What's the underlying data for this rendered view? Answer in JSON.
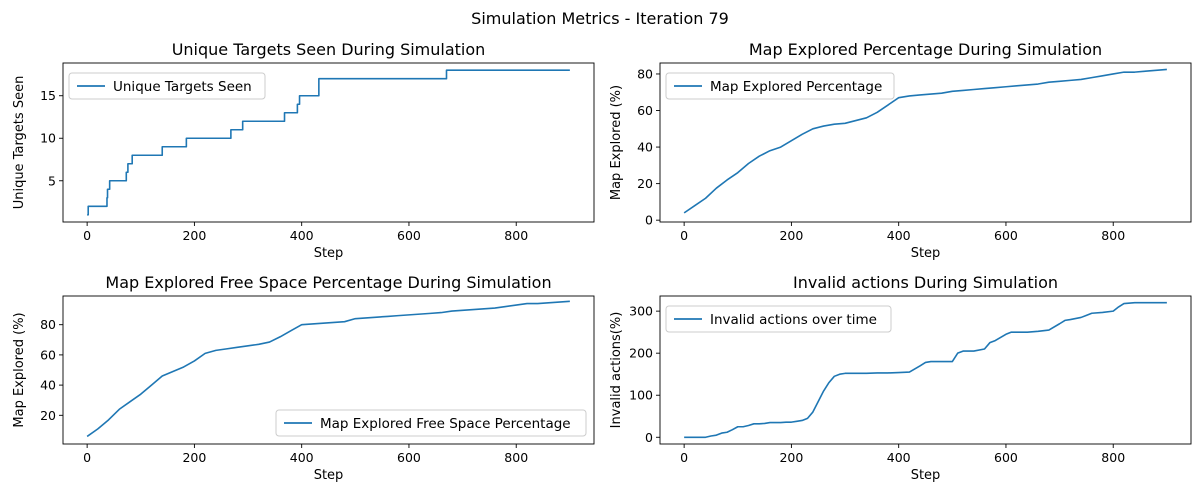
{
  "suptitle": "Simulation Metrics - Iteration 79",
  "chart_data": [
    {
      "type": "line",
      "title": "Unique Targets Seen During Simulation",
      "xlabel": "Step",
      "ylabel": "Unique Targets Seen",
      "xlim": [
        -45,
        945
      ],
      "ylim": [
        0.15,
        18.85
      ],
      "xticks": [
        0,
        200,
        400,
        600,
        800
      ],
      "yticks": [
        5,
        10,
        15
      ],
      "legend_position": "upper left",
      "series": [
        {
          "name": "Unique Targets Seen",
          "color": "#1f77b4",
          "x": [
            0,
            2,
            2,
            37,
            37,
            38,
            38,
            40,
            40,
            42,
            42,
            73,
            73,
            76,
            76,
            79,
            79,
            84,
            84,
            140,
            140,
            185,
            185,
            268,
            268,
            290,
            290,
            368,
            368,
            392,
            392,
            396,
            396,
            432,
            432,
            670,
            670,
            900
          ],
          "y": [
            1,
            1,
            2,
            2,
            3,
            3,
            4,
            4,
            4,
            4,
            5,
            5,
            6,
            6,
            7,
            7,
            7,
            7,
            8,
            8,
            9,
            9,
            10,
            10,
            11,
            11,
            12,
            12,
            13,
            13,
            14,
            14,
            15,
            15,
            17,
            17,
            18,
            18
          ]
        }
      ]
    },
    {
      "type": "line",
      "title": "Map Explored Percentage During Simulation",
      "xlabel": "Step",
      "ylabel": "Map Explored (%)",
      "xlim": [
        -45,
        945
      ],
      "ylim": [
        -1,
        86
      ],
      "xticks": [
        0,
        200,
        400,
        600,
        800
      ],
      "yticks": [
        0,
        20,
        40,
        60,
        80
      ],
      "legend_position": "upper left",
      "series": [
        {
          "name": "Map Explored Percentage",
          "color": "#1f77b4",
          "x": [
            0,
            20,
            40,
            60,
            80,
            100,
            120,
            140,
            160,
            180,
            200,
            220,
            240,
            260,
            280,
            300,
            320,
            340,
            360,
            380,
            400,
            420,
            440,
            460,
            480,
            500,
            520,
            540,
            560,
            580,
            600,
            620,
            640,
            660,
            680,
            700,
            720,
            740,
            760,
            780,
            800,
            820,
            840,
            860,
            880,
            900
          ],
          "y": [
            4,
            8,
            12,
            17.5,
            22,
            26,
            31,
            35,
            38,
            40,
            43.5,
            47,
            50,
            51.5,
            52.5,
            53,
            54.5,
            56,
            59,
            63,
            67,
            68,
            68.5,
            69,
            69.5,
            70.5,
            71,
            71.5,
            72,
            72.5,
            73,
            73.5,
            74,
            74.5,
            75.5,
            76,
            76.5,
            77,
            78,
            79,
            80,
            81,
            81,
            81.5,
            82,
            82.5
          ]
        }
      ]
    },
    {
      "type": "line",
      "title": "Map Explored Free Space Percentage During Simulation",
      "xlabel": "Step",
      "ylabel": "Map Explored (%)",
      "xlim": [
        -45,
        945
      ],
      "ylim": [
        1,
        99
      ],
      "xticks": [
        0,
        200,
        400,
        600,
        800
      ],
      "yticks": [
        20,
        40,
        60,
        80
      ],
      "legend_position": "lower right",
      "series": [
        {
          "name": "Map Explored Free Space Percentage",
          "color": "#1f77b4",
          "x": [
            0,
            20,
            40,
            60,
            80,
            100,
            120,
            140,
            160,
            180,
            200,
            220,
            240,
            260,
            280,
            300,
            320,
            340,
            360,
            380,
            400,
            420,
            440,
            460,
            480,
            500,
            520,
            540,
            560,
            580,
            600,
            620,
            640,
            660,
            680,
            700,
            720,
            740,
            760,
            780,
            800,
            820,
            840,
            860,
            880,
            900
          ],
          "y": [
            6,
            11,
            17,
            24,
            29,
            34,
            40,
            46,
            49,
            52,
            56,
            61,
            63,
            64,
            65,
            66,
            67,
            68.5,
            72,
            76,
            80,
            80.5,
            81,
            81.5,
            82,
            84,
            84.5,
            85,
            85.5,
            86,
            86.5,
            87,
            87.5,
            88,
            89,
            89.5,
            90,
            90.5,
            91,
            92,
            93,
            94,
            94,
            94.5,
            95,
            95.5
          ]
        }
      ]
    },
    {
      "type": "line",
      "title": "Invalid actions During Simulation",
      "xlabel": "Step",
      "ylabel": "Invalid actions(%)",
      "xlim": [
        -45,
        945
      ],
      "ylim": [
        -16,
        336
      ],
      "xticks": [
        0,
        200,
        400,
        600,
        800
      ],
      "yticks": [
        0,
        100,
        200,
        300
      ],
      "legend_position": "upper left",
      "series": [
        {
          "name": "Invalid actions over time",
          "color": "#1f77b4",
          "x": [
            0,
            40,
            50,
            60,
            70,
            80,
            90,
            100,
            110,
            120,
            130,
            140,
            150,
            160,
            170,
            180,
            190,
            200,
            210,
            220,
            230,
            240,
            250,
            260,
            270,
            280,
            290,
            300,
            320,
            340,
            360,
            380,
            400,
            420,
            440,
            450,
            460,
            480,
            500,
            510,
            520,
            540,
            560,
            570,
            580,
            600,
            610,
            620,
            640,
            660,
            680,
            700,
            710,
            720,
            740,
            750,
            760,
            780,
            800,
            810,
            820,
            840,
            860,
            880,
            900
          ],
          "y": [
            0,
            0,
            3,
            5,
            10,
            12,
            18,
            25,
            25,
            28,
            32,
            32,
            33,
            35,
            35,
            35,
            36,
            36,
            38,
            40,
            45,
            60,
            85,
            110,
            130,
            145,
            150,
            152,
            152,
            152,
            153,
            153,
            154,
            155,
            170,
            178,
            180,
            180,
            180,
            200,
            205,
            205,
            210,
            225,
            230,
            245,
            250,
            250,
            250,
            252,
            255,
            270,
            278,
            280,
            285,
            290,
            295,
            297,
            300,
            310,
            318,
            320,
            320,
            320,
            320
          ]
        }
      ]
    }
  ]
}
